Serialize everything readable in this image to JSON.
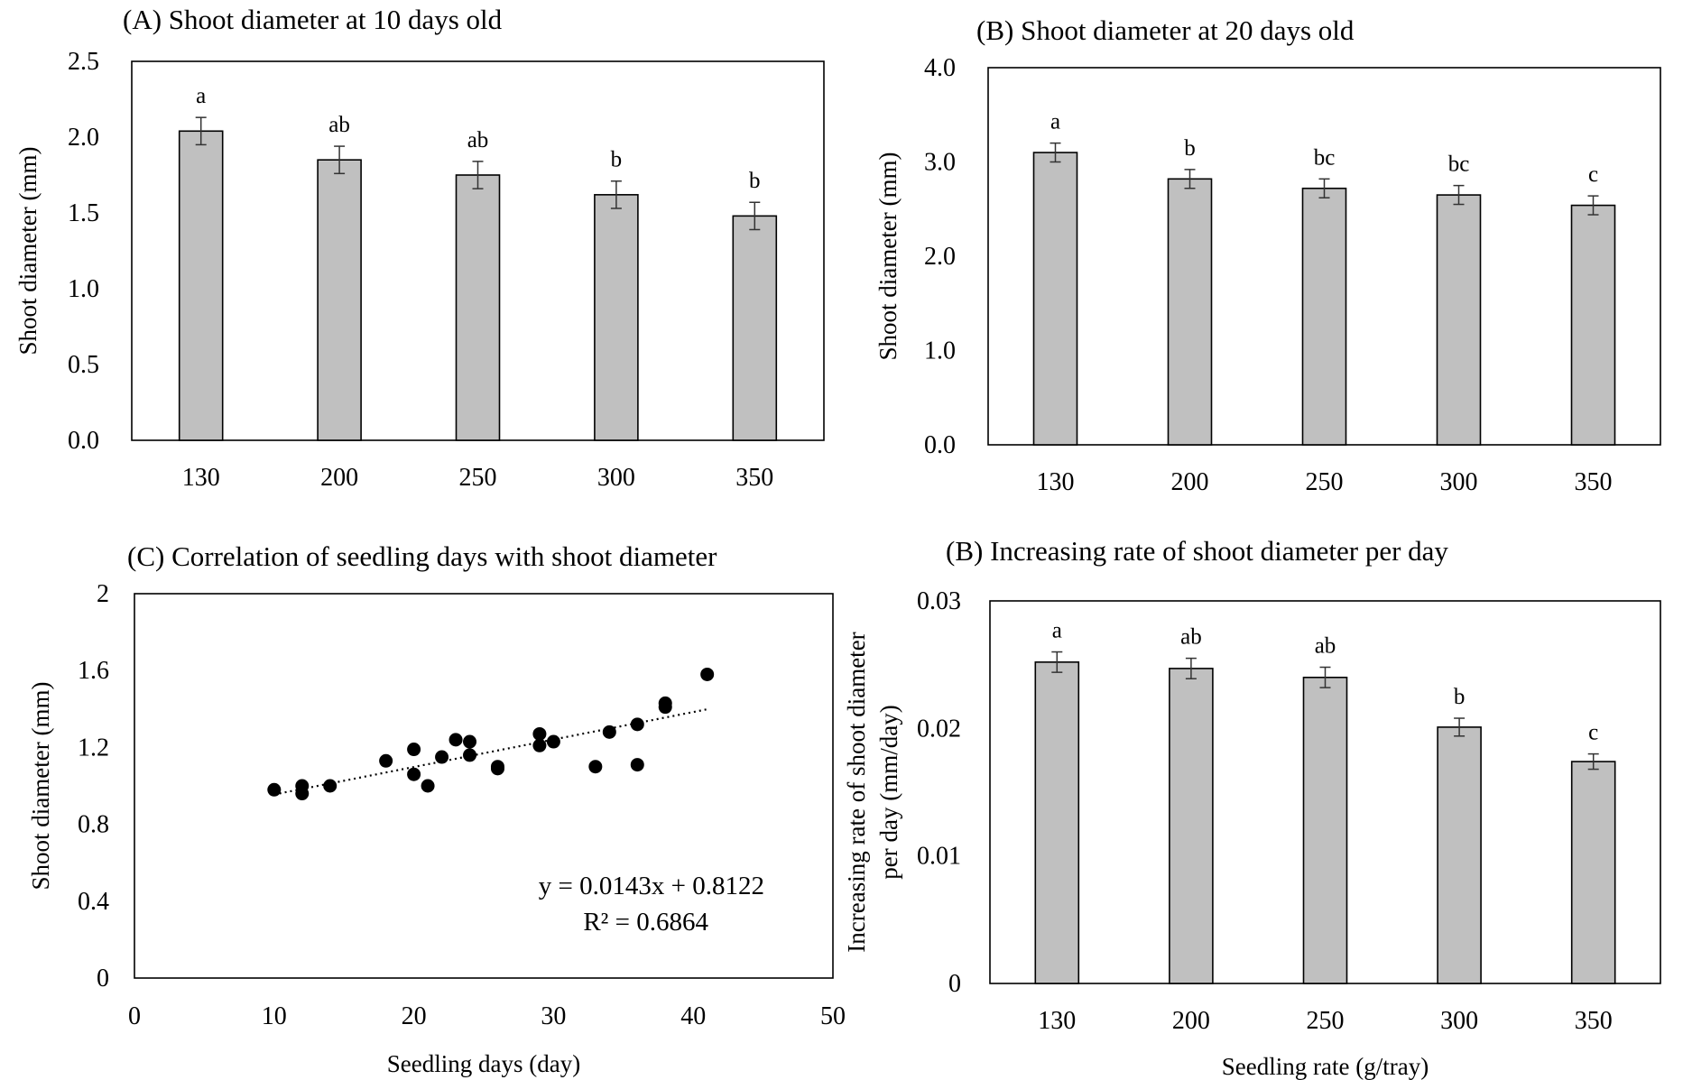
{
  "chart_data": [
    {
      "id": "A",
      "type": "bar",
      "title": "(A) Shoot diameter at 10 days old",
      "xlabel": "",
      "ylabel": "Shoot diameter (mm)",
      "categories": [
        "130",
        "200",
        "250",
        "300",
        "350"
      ],
      "values": [
        2.04,
        1.85,
        1.75,
        1.62,
        1.48
      ],
      "errors": [
        0.09,
        0.09,
        0.09,
        0.09,
        0.09
      ],
      "significance": [
        "a",
        "ab",
        "ab",
        "b",
        "b"
      ],
      "ylim": [
        0,
        2.5
      ],
      "yticks": [
        0,
        0.5,
        1.0,
        1.5,
        2.0,
        2.5
      ],
      "ytick_labels": [
        "0.0",
        "0.5",
        "1.0",
        "1.5",
        "2.0",
        "2.5"
      ],
      "bar_color": "#c0c0c0"
    },
    {
      "id": "B",
      "type": "bar",
      "title": "(B) Shoot diameter at 20 days old",
      "xlabel": "",
      "ylabel": "Shoot diameter (mm)",
      "categories": [
        "130",
        "200",
        "250",
        "300",
        "350"
      ],
      "values": [
        3.1,
        2.82,
        2.72,
        2.65,
        2.54
      ],
      "errors": [
        0.1,
        0.1,
        0.1,
        0.1,
        0.1
      ],
      "significance": [
        "a",
        "b",
        "bc",
        "bc",
        "c"
      ],
      "ylim": [
        0,
        4.0
      ],
      "yticks": [
        0,
        1.0,
        2.0,
        3.0,
        4.0
      ],
      "ytick_labels": [
        "0.0",
        "1.0",
        "2.0",
        "3.0",
        "4.0"
      ],
      "bar_color": "#c0c0c0"
    },
    {
      "id": "C",
      "type": "scatter",
      "title": "(C) Correlation of seedling days with shoot diameter",
      "xlabel": "Seedling days (day)",
      "ylabel": "Shoot diameter (mm)",
      "points": [
        [
          10,
          0.98
        ],
        [
          12,
          1.0
        ],
        [
          12,
          0.96
        ],
        [
          14,
          1.0
        ],
        [
          18,
          1.13
        ],
        [
          20,
          1.19
        ],
        [
          20,
          1.06
        ],
        [
          21,
          1.0
        ],
        [
          22,
          1.15
        ],
        [
          23,
          1.24
        ],
        [
          24,
          1.23
        ],
        [
          24,
          1.16
        ],
        [
          26,
          1.1
        ],
        [
          26,
          1.09
        ],
        [
          29,
          1.27
        ],
        [
          29,
          1.21
        ],
        [
          30,
          1.23
        ],
        [
          33,
          1.1
        ],
        [
          34,
          1.28
        ],
        [
          36,
          1.32
        ],
        [
          36,
          1.11
        ],
        [
          38,
          1.43
        ],
        [
          38,
          1.41
        ],
        [
          41,
          1.58
        ]
      ],
      "trendline": {
        "slope": 0.0143,
        "intercept": 0.8122,
        "x_range": [
          10,
          41
        ]
      },
      "equation": "y = 0.0143x + 0.8122",
      "r_squared": "R² = 0.6864",
      "xlim": [
        0,
        50
      ],
      "ylim": [
        0,
        2
      ],
      "xticks": [
        0,
        10,
        20,
        30,
        40,
        50
      ],
      "xtick_labels": [
        "0",
        "10",
        "20",
        "30",
        "40",
        "50"
      ],
      "yticks": [
        0,
        0.4,
        0.8,
        1.2,
        1.6,
        2
      ],
      "ytick_labels": [
        "0",
        "0.4",
        "0.8",
        "1.2",
        "1.6",
        "2"
      ]
    },
    {
      "id": "D",
      "type": "bar",
      "title": "(B) Increasing rate of shoot diameter per day",
      "xlabel": "Seedling rate (g/tray)",
      "ylabel_lines": [
        "Increasing rate of shoot diameter",
        "per day (mm/day)"
      ],
      "categories": [
        "130",
        "200",
        "250",
        "300",
        "350"
      ],
      "values": [
        0.0252,
        0.0247,
        0.024,
        0.0201,
        0.0174
      ],
      "errors": [
        0.0008,
        0.0008,
        0.0008,
        0.0007,
        0.0006
      ],
      "significance": [
        "a",
        "ab",
        "ab",
        "b",
        "c"
      ],
      "ylim": [
        0,
        0.03
      ],
      "yticks": [
        0,
        0.01,
        0.02,
        0.03
      ],
      "ytick_labels": [
        "0",
        "0.01",
        "0.02",
        "0.03"
      ],
      "bar_color": "#c0c0c0"
    }
  ]
}
